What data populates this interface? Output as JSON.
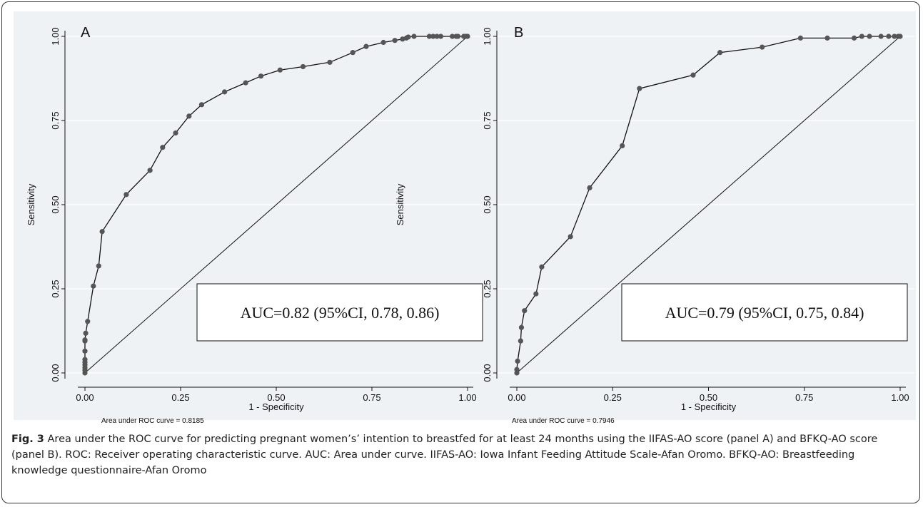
{
  "caption": {
    "label": "Fig. 3",
    "text": "Area under the ROC curve for predicting pregnant women’s’ intention to breastfed for at least 24 months using the IIFAS-AO score (panel A) and BFKQ-AO score (panel B). ROC: Receiver operating characteristic curve. AUC: Area under curve. IIFAS-AO: Iowa Infant Feeding Attitude Scale-Afan Oromo. BFKQ-AO: Breastfeeding knowledge questionnaire-Afan Oromo"
  },
  "colors": {
    "curve": "#111111",
    "marker": "#555555",
    "background": "#eef2f5",
    "grid": "#ffffff"
  },
  "chart_data": [
    {
      "type": "line",
      "panel_label": "A",
      "xlabel": "1 - Specificity",
      "ylabel": "Sensitivity",
      "xlim": [
        0,
        1
      ],
      "ylim": [
        0,
        1
      ],
      "xticks": [
        "0.00",
        "0.25",
        "0.50",
        "0.75",
        "1.00"
      ],
      "yticks": [
        "0.00",
        "0.25",
        "0.50",
        "0.75",
        "1.00"
      ],
      "grid": true,
      "note": "Area under ROC curve = 0.8185",
      "annotation": "AUC=0.82 (95%CI, 0.78, 0.86)",
      "series": [
        {
          "x": [
            0,
            0,
            0,
            0,
            0,
            0,
            0,
            0,
            0,
            0.002,
            0.007,
            0.022,
            0.036,
            0.045,
            0.108,
            0.17,
            0.203,
            0.237,
            0.272,
            0.305,
            0.365,
            0.42,
            0.46,
            0.51,
            0.57,
            0.64,
            0.7,
            0.735,
            0.78,
            0.81,
            0.83,
            0.84,
            0.845,
            0.86,
            0.9,
            0.91,
            0.92,
            0.93,
            0.96,
            0.97,
            0.975,
            0.99,
            0.995,
            1.0
          ],
          "y": [
            0,
            0.008,
            0.016,
            0.024,
            0.032,
            0.04,
            0.065,
            0.095,
            0.098,
            0.118,
            0.153,
            0.258,
            0.318,
            0.42,
            0.53,
            0.602,
            0.67,
            0.713,
            0.763,
            0.797,
            0.835,
            0.862,
            0.882,
            0.9,
            0.91,
            0.923,
            0.952,
            0.97,
            0.982,
            0.988,
            0.992,
            0.995,
            0.998,
            1.0,
            1.0,
            1.0,
            1.0,
            1.0,
            1.0,
            1.0,
            1.0,
            1.0,
            1.0,
            1.0
          ]
        },
        {
          "x": [
            0,
            1
          ],
          "y": [
            0,
            1
          ]
        }
      ]
    },
    {
      "type": "line",
      "panel_label": "B",
      "xlabel": "1 - Specificity",
      "ylabel": "Sensitivity",
      "xlim": [
        0,
        1
      ],
      "ylim": [
        0,
        1
      ],
      "xticks": [
        "0.00",
        "0.25",
        "0.50",
        "0.75",
        "1.00"
      ],
      "yticks": [
        "0.00",
        "0.25",
        "0.50",
        "0.75",
        "1.00"
      ],
      "grid": true,
      "note": "Area under ROC curve = 0.7946",
      "annotation": "AUC=0.79 (95%CI, 0.75, 0.84)",
      "series": [
        {
          "x": [
            0,
            0,
            0.002,
            0.01,
            0.012,
            0.02,
            0.05,
            0.065,
            0.14,
            0.19,
            0.275,
            0.32,
            0.46,
            0.53,
            0.64,
            0.74,
            0.81,
            0.88,
            0.9,
            0.92,
            0.95,
            0.97,
            0.985,
            0.995,
            1.0
          ],
          "y": [
            0,
            0.01,
            0.035,
            0.095,
            0.135,
            0.185,
            0.235,
            0.315,
            0.405,
            0.55,
            0.675,
            0.845,
            0.885,
            0.952,
            0.968,
            0.995,
            0.995,
            0.995,
            1.0,
            1.0,
            1.0,
            1.0,
            1.0,
            1.0,
            1.0
          ]
        },
        {
          "x": [
            0,
            1
          ],
          "y": [
            0,
            1
          ]
        }
      ]
    }
  ]
}
